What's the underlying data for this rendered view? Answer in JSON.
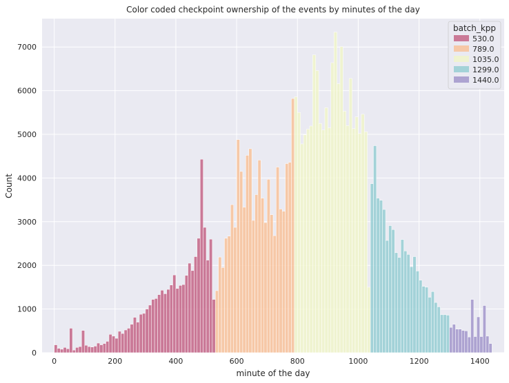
{
  "chart_data": {
    "type": "bar",
    "title": "Color coded checkpoint ownership of the events by minutes of the day",
    "xlabel": "minute of the day",
    "ylabel": "Count",
    "xlim": [
      -40,
      1480
    ],
    "ylim": [
      0,
      7650
    ],
    "xticks": [
      0,
      200,
      400,
      600,
      800,
      1000,
      1200,
      1400
    ],
    "yticks": [
      0,
      1000,
      2000,
      3000,
      4000,
      5000,
      6000,
      7000
    ],
    "grid": true,
    "bin_width": 10,
    "legend": {
      "title": "batch_kpp",
      "position": "top-right",
      "entries": [
        "530.0",
        "789.0",
        "1035.0",
        "1299.0",
        "1440.0"
      ]
    },
    "series": [
      {
        "name": "530.0",
        "color": "#c0587e",
        "bins": [
          [
            0,
            180
          ],
          [
            10,
            100
          ],
          [
            20,
            80
          ],
          [
            30,
            120
          ],
          [
            40,
            90
          ],
          [
            50,
            560
          ],
          [
            60,
            60
          ],
          [
            70,
            120
          ],
          [
            80,
            140
          ],
          [
            90,
            510
          ],
          [
            100,
            170
          ],
          [
            110,
            140
          ],
          [
            120,
            130
          ],
          [
            130,
            150
          ],
          [
            140,
            220
          ],
          [
            150,
            180
          ],
          [
            160,
            210
          ],
          [
            170,
            260
          ],
          [
            180,
            420
          ],
          [
            190,
            380
          ],
          [
            200,
            330
          ],
          [
            210,
            490
          ],
          [
            220,
            440
          ],
          [
            230,
            520
          ],
          [
            240,
            560
          ],
          [
            250,
            650
          ],
          [
            260,
            810
          ],
          [
            270,
            700
          ],
          [
            280,
            880
          ],
          [
            290,
            900
          ],
          [
            300,
            1000
          ],
          [
            310,
            1090
          ],
          [
            320,
            1220
          ],
          [
            330,
            1240
          ],
          [
            340,
            1330
          ],
          [
            350,
            1430
          ],
          [
            360,
            1350
          ],
          [
            370,
            1450
          ],
          [
            380,
            1550
          ],
          [
            390,
            1780
          ],
          [
            400,
            1470
          ],
          [
            410,
            1540
          ],
          [
            420,
            1560
          ],
          [
            430,
            1770
          ],
          [
            440,
            2050
          ],
          [
            450,
            1880
          ],
          [
            460,
            2200
          ],
          [
            470,
            2620
          ],
          [
            480,
            4430
          ],
          [
            490,
            2870
          ],
          [
            500,
            2120
          ],
          [
            510,
            2600
          ],
          [
            520,
            1220
          ]
        ]
      },
      {
        "name": "789.0",
        "color": "#f8be92",
        "bins": [
          [
            530,
            1420
          ],
          [
            540,
            2190
          ],
          [
            550,
            1950
          ],
          [
            560,
            2620
          ],
          [
            570,
            2670
          ],
          [
            580,
            3390
          ],
          [
            590,
            2870
          ],
          [
            600,
            4880
          ],
          [
            610,
            4150
          ],
          [
            620,
            3330
          ],
          [
            630,
            4520
          ],
          [
            640,
            4670
          ],
          [
            650,
            3030
          ],
          [
            660,
            3620
          ],
          [
            670,
            4410
          ],
          [
            680,
            3540
          ],
          [
            690,
            2980
          ],
          [
            700,
            3970
          ],
          [
            710,
            3160
          ],
          [
            720,
            2680
          ],
          [
            730,
            4250
          ],
          [
            740,
            3290
          ],
          [
            750,
            3240
          ],
          [
            760,
            4330
          ],
          [
            770,
            4360
          ],
          [
            780,
            5820
          ]
        ]
      },
      {
        "name": "1035.0",
        "color": "#f0f5c6",
        "bins": [
          [
            790,
            5860
          ],
          [
            800,
            5500
          ],
          [
            810,
            4780
          ],
          [
            820,
            4990
          ],
          [
            830,
            5120
          ],
          [
            840,
            5190
          ],
          [
            850,
            6820
          ],
          [
            860,
            6460
          ],
          [
            870,
            5250
          ],
          [
            880,
            5100
          ],
          [
            890,
            5610
          ],
          [
            900,
            5150
          ],
          [
            910,
            6640
          ],
          [
            920,
            7340
          ],
          [
            930,
            6160
          ],
          [
            940,
            7010
          ],
          [
            950,
            5530
          ],
          [
            960,
            5200
          ],
          [
            970,
            6280
          ],
          [
            980,
            5130
          ],
          [
            990,
            5400
          ],
          [
            1000,
            5020
          ],
          [
            1010,
            5460
          ],
          [
            1020,
            5060
          ],
          [
            1030,
            1500
          ]
        ]
      },
      {
        "name": "1299.0",
        "color": "#8ecbd1",
        "bins": [
          [
            1040,
            3870
          ],
          [
            1050,
            4740
          ],
          [
            1060,
            3540
          ],
          [
            1070,
            3490
          ],
          [
            1080,
            3280
          ],
          [
            1090,
            2570
          ],
          [
            1100,
            2910
          ],
          [
            1110,
            2820
          ],
          [
            1120,
            2290
          ],
          [
            1130,
            2180
          ],
          [
            1140,
            2590
          ],
          [
            1150,
            2330
          ],
          [
            1160,
            2250
          ],
          [
            1170,
            1970
          ],
          [
            1180,
            2200
          ],
          [
            1190,
            1870
          ],
          [
            1200,
            1660
          ],
          [
            1210,
            1520
          ],
          [
            1220,
            1500
          ],
          [
            1230,
            1270
          ],
          [
            1240,
            1400
          ],
          [
            1250,
            1150
          ],
          [
            1260,
            1050
          ],
          [
            1270,
            870
          ],
          [
            1280,
            870
          ],
          [
            1290,
            860
          ]
        ]
      },
      {
        "name": "1440.0",
        "color": "#9b8ec8",
        "bins": [
          [
            1300,
            580
          ],
          [
            1310,
            650
          ],
          [
            1320,
            540
          ],
          [
            1330,
            540
          ],
          [
            1340,
            510
          ],
          [
            1350,
            500
          ],
          [
            1360,
            360
          ],
          [
            1370,
            1220
          ],
          [
            1380,
            370
          ],
          [
            1390,
            820
          ],
          [
            1400,
            370
          ],
          [
            1410,
            1080
          ],
          [
            1420,
            380
          ],
          [
            1430,
            210
          ]
        ]
      }
    ]
  }
}
